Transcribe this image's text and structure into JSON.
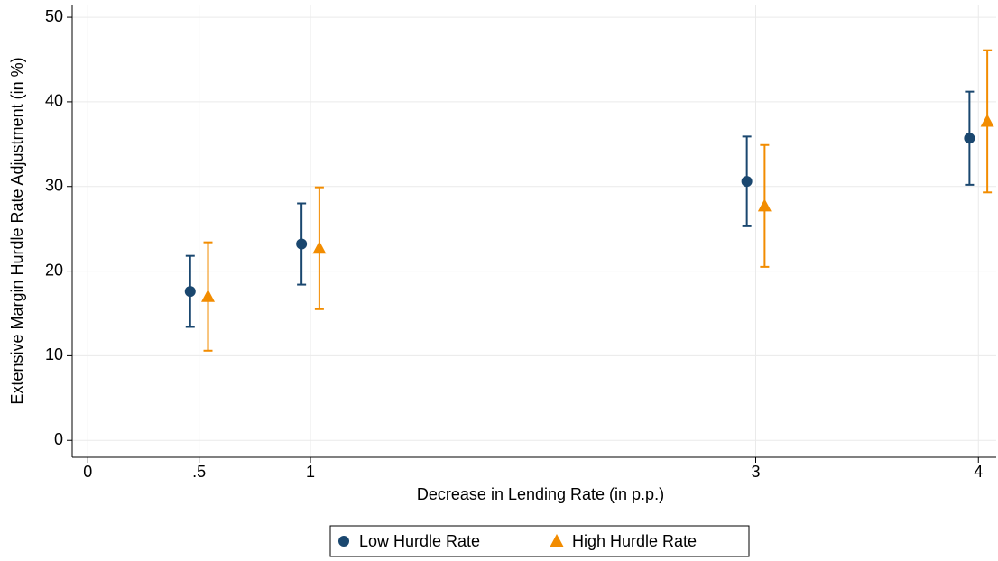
{
  "chart_data": {
    "type": "errorbar",
    "xlabel": "Decrease in Lending Rate (in p.p.)",
    "ylabel": "Extensive Margin Hurdle Rate Adjustment (in %)",
    "xlim": [
      -0.07,
      4.08
    ],
    "xticks": [
      0,
      {
        "value": 0.5,
        "label": ".5"
      },
      1,
      3,
      4
    ],
    "ylim": [
      -2,
      51.5
    ],
    "yticks": [
      0,
      10,
      20,
      30,
      40,
      50
    ],
    "grid": true,
    "legend": "bottom",
    "series": [
      {
        "name": "Low Hurdle Rate",
        "color": "#1a476f",
        "marker": "circle",
        "x": [
          0.46,
          0.96,
          2.96,
          3.96
        ],
        "values": [
          17.6,
          23.2,
          30.6,
          35.7
        ],
        "errors": [
          4.2,
          4.8,
          5.3,
          5.5
        ]
      },
      {
        "name": "High Hurdle Rate",
        "color": "#f28c00",
        "marker": "triangle",
        "x": [
          0.54,
          1.04,
          3.04,
          4.04
        ],
        "values": [
          17.0,
          22.7,
          27.7,
          37.7
        ],
        "errors": [
          6.4,
          7.2,
          7.2,
          8.4
        ]
      }
    ]
  }
}
